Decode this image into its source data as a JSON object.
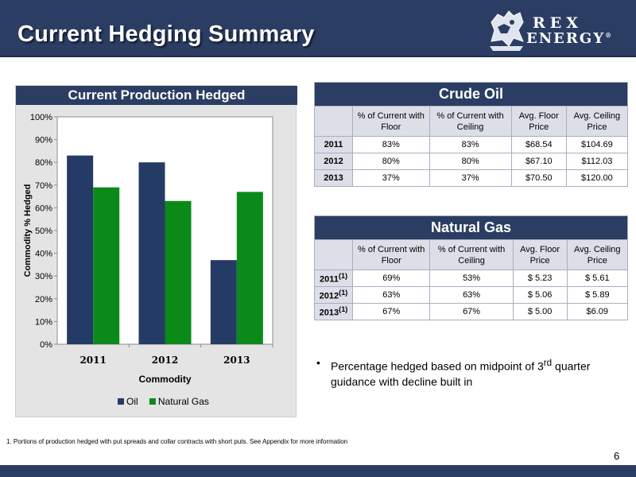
{
  "header": {
    "title": "Current Hedging Summary",
    "logo_top": "REX",
    "logo_bottom": "ENERGY",
    "logo_reg": "®"
  },
  "chart_data": {
    "type": "bar",
    "title": "Current Production Hedged",
    "xlabel": "Commodity",
    "ylabel": "Commodity % Hedged",
    "categories": [
      "2011",
      "2012",
      "2013"
    ],
    "series": [
      {
        "name": "Oil",
        "values": [
          83,
          80,
          37
        ],
        "color": "#243b66"
      },
      {
        "name": "Natural Gas",
        "values": [
          69,
          63,
          67
        ],
        "color": "#0b8a1a"
      }
    ],
    "ylim": [
      0,
      100
    ],
    "yticks": [
      "0%",
      "10%",
      "20%",
      "30%",
      "40%",
      "50%",
      "60%",
      "70%",
      "80%",
      "90%",
      "100%"
    ],
    "legend": "bottom",
    "grid": false
  },
  "crude_oil": {
    "title": "Crude Oil",
    "headers": [
      "% of Current with Floor",
      "% of Current with Ceiling",
      "Avg. Floor Price",
      "Avg. Ceiling Price"
    ],
    "rows": [
      {
        "year": "2011",
        "floor_pct": "83%",
        "ceiling_pct": "83%",
        "floor_price": "$68.54",
        "ceiling_price": "$104.69"
      },
      {
        "year": "2012",
        "floor_pct": "80%",
        "ceiling_pct": "80%",
        "floor_price": "$67.10",
        "ceiling_price": "$112.03"
      },
      {
        "year": "2013",
        "floor_pct": "37%",
        "ceiling_pct": "37%",
        "floor_price": "$70.50",
        "ceiling_price": "$120.00"
      }
    ]
  },
  "natural_gas": {
    "title": "Natural Gas",
    "headers": [
      "% of Current with Floor",
      "% of Current with Ceiling",
      "Avg. Floor Price",
      "Avg. Ceiling Price"
    ],
    "footnote_mark": "(1)",
    "rows": [
      {
        "year": "2011",
        "floor_pct": "69%",
        "ceiling_pct": "53%",
        "floor_price": "$ 5.23",
        "ceiling_price": "$ 5.61"
      },
      {
        "year": "2012",
        "floor_pct": "63%",
        "ceiling_pct": "63%",
        "floor_price": "$ 5.06",
        "ceiling_price": "$ 5.89"
      },
      {
        "year": "2013",
        "floor_pct": "67%",
        "ceiling_pct": "67%",
        "floor_price": "$ 5.00",
        "ceiling_price": "$6.09"
      }
    ]
  },
  "note": {
    "bullet": "•",
    "text_before": "Percentage hedged based on midpoint of 3",
    "sup": "rd",
    "text_after": " quarter guidance with decline built in"
  },
  "footnote": "1. Portions of production hedged with put spreads and collar contracts with short puts.  See Appendix for more information",
  "page_number": "6"
}
